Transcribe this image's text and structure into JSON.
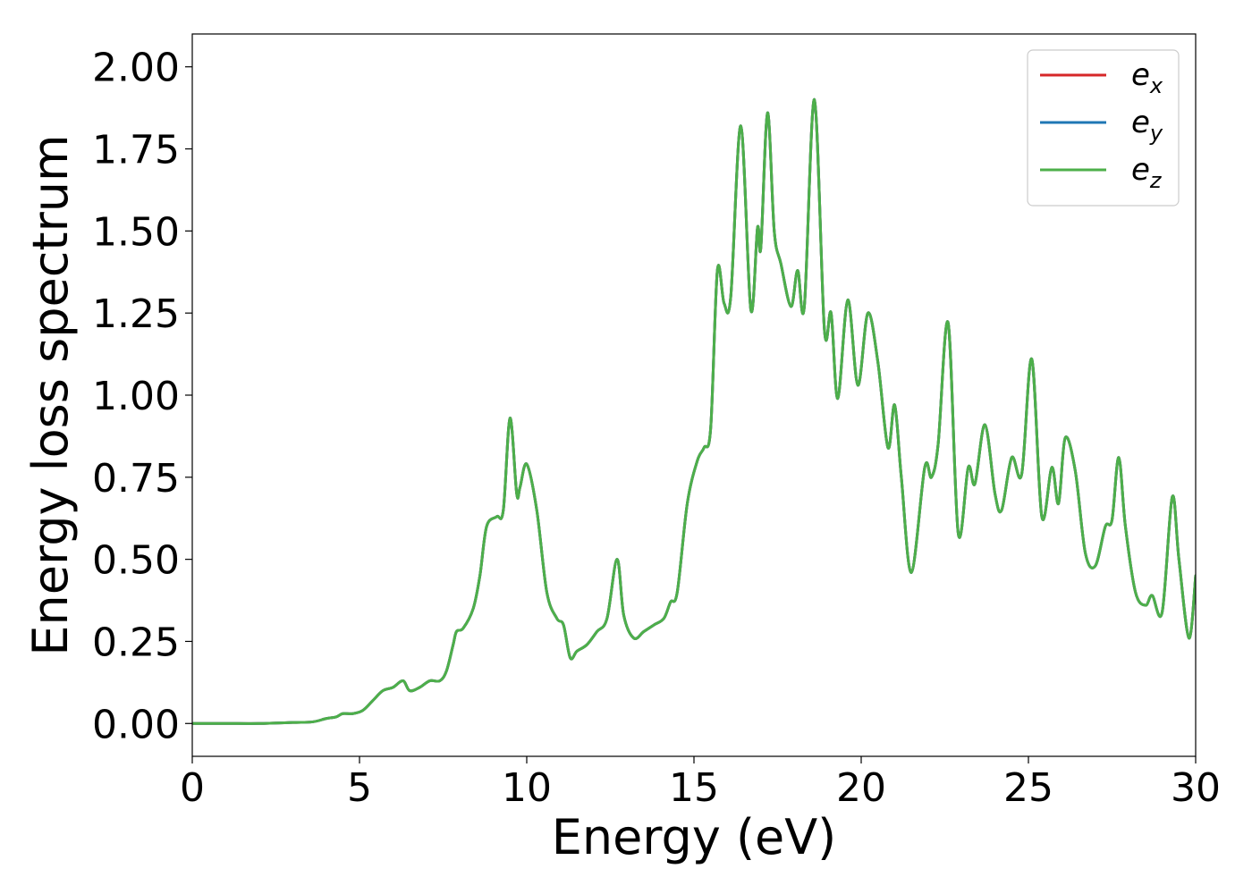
{
  "chart_data": {
    "type": "line",
    "title": "",
    "xlabel": "Energy (eV)",
    "ylabel": "Energy loss spectrum",
    "xlim": [
      0,
      30
    ],
    "ylim": [
      -0.1,
      2.1
    ],
    "xticks": [
      0,
      5,
      10,
      15,
      20,
      25,
      30
    ],
    "yticks": [
      0.0,
      0.25,
      0.5,
      0.75,
      1.0,
      1.25,
      1.5,
      1.75,
      2.0
    ],
    "ytick_format": 2,
    "grid": false,
    "legend": {
      "position": "top-right"
    },
    "x": [
      0,
      1,
      2,
      3,
      3.6,
      4,
      4.3,
      4.5,
      4.8,
      5.1,
      5.4,
      5.7,
      6.0,
      6.3,
      6.5,
      6.8,
      7.1,
      7.4,
      7.6,
      7.8,
      7.9,
      8.1,
      8.4,
      8.6,
      8.8,
      9.1,
      9.3,
      9.5,
      9.7,
      9.8,
      10.0,
      10.3,
      10.6,
      10.9,
      11.1,
      11.3,
      11.5,
      11.8,
      12.1,
      12.4,
      12.7,
      12.9,
      13.2,
      13.5,
      13.8,
      14.1,
      14.3,
      14.5,
      14.8,
      15.1,
      15.3,
      15.5,
      15.7,
      15.9,
      16.1,
      16.4,
      16.7,
      16.9,
      17.0,
      17.2,
      17.4,
      17.6,
      17.9,
      18.1,
      18.3,
      18.6,
      18.9,
      19.1,
      19.3,
      19.6,
      19.9,
      20.2,
      20.5,
      20.8,
      21.0,
      21.2,
      21.5,
      21.9,
      22.1,
      22.3,
      22.6,
      22.9,
      23.2,
      23.4,
      23.7,
      24.0,
      24.2,
      24.5,
      24.8,
      25.1,
      25.4,
      25.7,
      25.9,
      26.1,
      26.4,
      26.7,
      27.0,
      27.3,
      27.5,
      27.7,
      27.9,
      28.2,
      28.5,
      28.7,
      29.0,
      29.3,
      29.5,
      29.8,
      30.0
    ],
    "series": [
      {
        "name": "e_x",
        "label_base": "e",
        "label_sub": "x",
        "color": "#d62728",
        "values": [
          0.0,
          0.0,
          0.0,
          0.003,
          0.005,
          0.015,
          0.02,
          0.03,
          0.03,
          0.04,
          0.07,
          0.1,
          0.11,
          0.13,
          0.1,
          0.11,
          0.13,
          0.13,
          0.16,
          0.24,
          0.28,
          0.29,
          0.35,
          0.45,
          0.6,
          0.63,
          0.65,
          0.93,
          0.7,
          0.72,
          0.79,
          0.65,
          0.4,
          0.32,
          0.3,
          0.2,
          0.22,
          0.24,
          0.28,
          0.32,
          0.5,
          0.33,
          0.26,
          0.28,
          0.3,
          0.32,
          0.37,
          0.4,
          0.67,
          0.8,
          0.84,
          0.9,
          1.38,
          1.28,
          1.3,
          1.82,
          1.26,
          1.51,
          1.45,
          1.86,
          1.5,
          1.4,
          1.27,
          1.38,
          1.27,
          1.9,
          1.2,
          1.25,
          0.99,
          1.29,
          1.03,
          1.25,
          1.1,
          0.84,
          0.97,
          0.75,
          0.46,
          0.78,
          0.75,
          0.85,
          1.22,
          0.58,
          0.78,
          0.73,
          0.91,
          0.7,
          0.65,
          0.81,
          0.76,
          1.11,
          0.63,
          0.78,
          0.67,
          0.87,
          0.77,
          0.52,
          0.48,
          0.6,
          0.62,
          0.81,
          0.6,
          0.4,
          0.36,
          0.39,
          0.34,
          0.69,
          0.5,
          0.26,
          0.45
        ]
      },
      {
        "name": "e_y",
        "label_base": "e",
        "label_sub": "y",
        "color": "#1f77b4",
        "values": [
          0.0,
          0.0,
          0.0,
          0.003,
          0.005,
          0.015,
          0.02,
          0.03,
          0.03,
          0.04,
          0.07,
          0.1,
          0.11,
          0.13,
          0.1,
          0.11,
          0.13,
          0.13,
          0.16,
          0.24,
          0.28,
          0.29,
          0.35,
          0.45,
          0.6,
          0.63,
          0.65,
          0.93,
          0.7,
          0.72,
          0.79,
          0.65,
          0.4,
          0.32,
          0.3,
          0.2,
          0.22,
          0.24,
          0.28,
          0.32,
          0.5,
          0.33,
          0.26,
          0.28,
          0.3,
          0.32,
          0.37,
          0.4,
          0.67,
          0.8,
          0.84,
          0.9,
          1.38,
          1.28,
          1.3,
          1.82,
          1.26,
          1.51,
          1.45,
          1.86,
          1.5,
          1.4,
          1.27,
          1.38,
          1.27,
          1.9,
          1.2,
          1.25,
          0.99,
          1.29,
          1.03,
          1.25,
          1.1,
          0.84,
          0.97,
          0.75,
          0.46,
          0.78,
          0.75,
          0.85,
          1.22,
          0.58,
          0.78,
          0.73,
          0.91,
          0.7,
          0.65,
          0.81,
          0.76,
          1.11,
          0.63,
          0.78,
          0.67,
          0.87,
          0.77,
          0.52,
          0.48,
          0.6,
          0.62,
          0.81,
          0.6,
          0.4,
          0.36,
          0.39,
          0.34,
          0.69,
          0.5,
          0.26,
          0.45
        ]
      },
      {
        "name": "e_z",
        "label_base": "e",
        "label_sub": "z",
        "color": "#4daf4a",
        "values": [
          0.0,
          0.0,
          0.0,
          0.003,
          0.005,
          0.015,
          0.02,
          0.03,
          0.03,
          0.04,
          0.07,
          0.1,
          0.11,
          0.13,
          0.1,
          0.11,
          0.13,
          0.13,
          0.16,
          0.24,
          0.28,
          0.29,
          0.35,
          0.45,
          0.6,
          0.63,
          0.65,
          0.93,
          0.7,
          0.72,
          0.79,
          0.65,
          0.4,
          0.32,
          0.3,
          0.2,
          0.22,
          0.24,
          0.28,
          0.32,
          0.5,
          0.33,
          0.26,
          0.28,
          0.3,
          0.32,
          0.37,
          0.4,
          0.67,
          0.8,
          0.84,
          0.9,
          1.38,
          1.28,
          1.3,
          1.82,
          1.26,
          1.51,
          1.45,
          1.86,
          1.5,
          1.4,
          1.27,
          1.38,
          1.27,
          1.9,
          1.2,
          1.25,
          0.99,
          1.29,
          1.03,
          1.25,
          1.1,
          0.84,
          0.97,
          0.75,
          0.46,
          0.78,
          0.75,
          0.85,
          1.22,
          0.58,
          0.78,
          0.73,
          0.91,
          0.7,
          0.65,
          0.81,
          0.76,
          1.11,
          0.63,
          0.78,
          0.67,
          0.87,
          0.77,
          0.52,
          0.48,
          0.6,
          0.62,
          0.81,
          0.6,
          0.4,
          0.36,
          0.39,
          0.34,
          0.69,
          0.5,
          0.26,
          0.45
        ]
      }
    ]
  }
}
